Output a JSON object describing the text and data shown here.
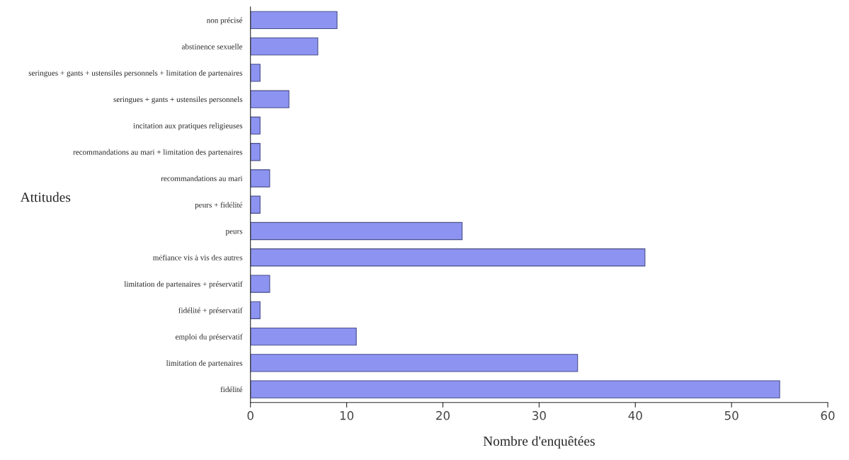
{
  "chart_data": {
    "type": "bar",
    "orientation": "horizontal",
    "xlabel": "Nombre d'enquêtées",
    "ylabel": "Attitudes",
    "categories": [
      "non précisé",
      "abstinence sexuelle",
      "seringues + gants + ustensiles personnels + limitation de partenaires",
      "seringues + gants + ustensiles personnels",
      "incitation aux pratiques religieuses",
      "recommandations au mari + limitation des partenaires",
      "recommandations au mari",
      "peurs + fidélité",
      "peurs",
      "méfiance vis à vis des autres",
      "limitation de partenaires + préservatif",
      "fidélité + préservatif",
      "emploi du préservatif",
      "limitation de partenaires",
      "fidélité"
    ],
    "values": [
      9,
      7,
      1,
      4,
      1,
      1,
      2,
      1,
      22,
      41,
      2,
      1,
      11,
      34,
      55
    ],
    "color": "#8c93f0",
    "xlim": [
      0,
      60
    ],
    "xticks": [
      0,
      10,
      20,
      30,
      40,
      50,
      60
    ],
    "grid": false,
    "legend": false
  }
}
